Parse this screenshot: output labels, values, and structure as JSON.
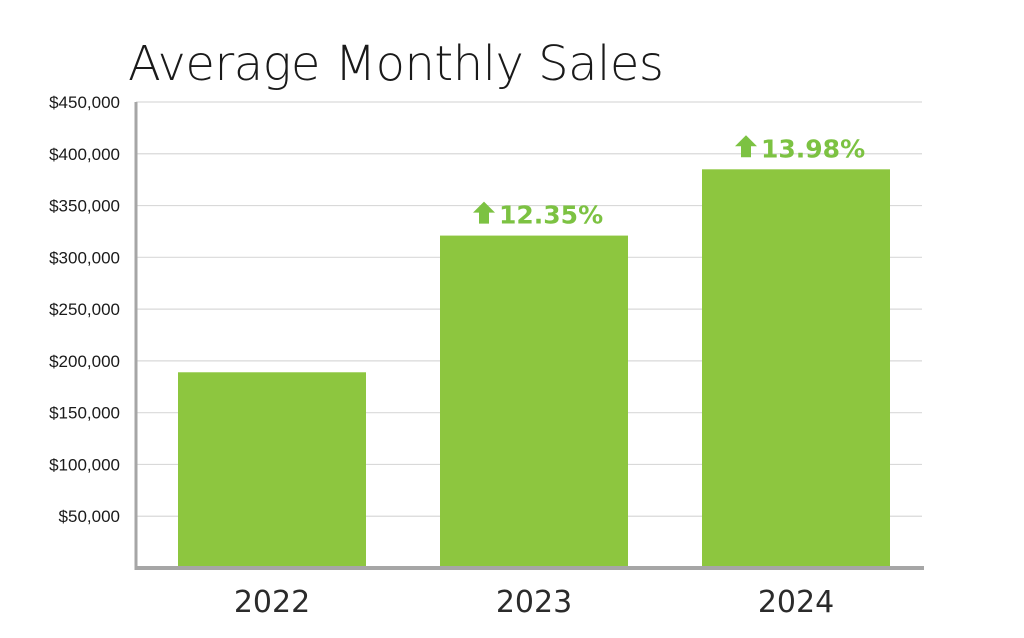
{
  "colors": {
    "bar": "#8dc63f",
    "annotation": "#7cc242",
    "grid": "#d9d9d9",
    "axis": "#a6a6a6"
  },
  "chart_data": {
    "type": "bar",
    "title": "Average Monthly Sales",
    "xlabel": "",
    "ylabel": "",
    "categories": [
      "2022",
      "2023",
      "2024"
    ],
    "values": [
      189000,
      321000,
      385000
    ],
    "ylim": [
      0,
      450000
    ],
    "yticks": [
      50000,
      100000,
      150000,
      200000,
      250000,
      300000,
      350000,
      400000,
      450000
    ],
    "ytick_labels": [
      "$50,000",
      "$100,000",
      "$150,000",
      "$200,000",
      "$250,000",
      "$300,000",
      "$350,000",
      "$400,000",
      "$450,000"
    ],
    "grid": true,
    "legend": "none",
    "annotations": [
      {
        "category": "2023",
        "text": "12.35%",
        "icon": "up-arrow-icon"
      },
      {
        "category": "2024",
        "text": "13.98%",
        "icon": "up-arrow-icon"
      }
    ]
  }
}
